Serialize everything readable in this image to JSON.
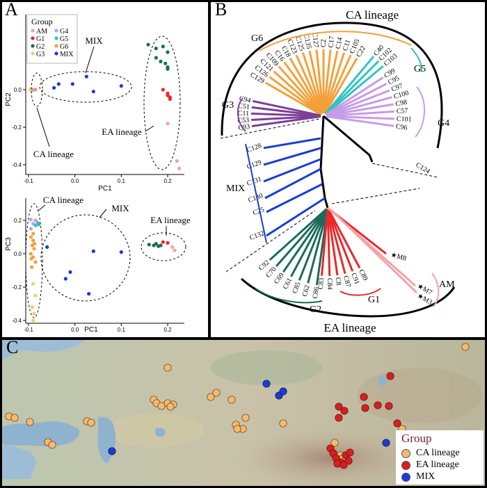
{
  "panel_labels": {
    "a": "A",
    "b": "B",
    "c": "C"
  },
  "colors": {
    "AM": "#f4a3a3",
    "G1": "#e8282a",
    "G2": "#1a6b5a",
    "G3": "#f2cc6b",
    "G4": "#c69be8",
    "G5": "#2ec4c4",
    "G6": "#f4a03a",
    "MIX": "#1a3cd6",
    "CA": "#f7b96a",
    "EA": "#d81f1f"
  },
  "legendA": {
    "title": "Group",
    "items": [
      "AM",
      "G4",
      "G1",
      "G5",
      "G2",
      "G6",
      "G3",
      "MIX"
    ]
  },
  "plot1": {
    "xlabel": "PC1",
    "ylabel": "PC2",
    "xticks": [
      "-0.1",
      "0.0",
      "0.1",
      "0.2"
    ],
    "yticks": [
      "0.0",
      "-0.2",
      "-0.4"
    ],
    "annotations": {
      "mix": "MIX",
      "ea": "EA lineage",
      "ca": "CA lineage"
    }
  },
  "plot2": {
    "xlabel": "PC1",
    "ylabel": "PC3",
    "xticks": [
      "-0.1",
      "0.0",
      "0.1",
      "0.2"
    ],
    "yticks": [
      "0.2",
      "0.0",
      "-0.2",
      "-0.4"
    ],
    "annotations": {
      "ca": "CA lineage",
      "mix": "MIX",
      "ea": "EA lineage"
    }
  },
  "tree": {
    "ca_label": "CA lineage",
    "ea_label": "EA lineage",
    "mix_label": "MIX",
    "groups": {
      "G6": "G6",
      "G5": "G5",
      "G4": "G4",
      "G3": "G3",
      "G2": "G2",
      "G1": "G1",
      "AM": "AM"
    },
    "g6_tips": [
      "C129",
      "C126",
      "C121",
      "C109",
      "C16",
      "C18",
      "C123",
      "C125",
      "C135",
      "C127",
      "C2",
      "C17",
      "C14",
      "C11",
      "C105",
      "C22"
    ],
    "g5_tips": [
      "C40",
      "C102",
      "C103"
    ],
    "g4_tips": [
      "C99",
      "C95",
      "C97",
      "C100",
      "C98",
      "C57",
      "C101",
      "C96"
    ],
    "g3_tips": [
      "C94",
      "C51",
      "C11",
      "C53",
      "C93"
    ],
    "mix_tips": [
      "C128",
      "C129",
      "C131",
      "C130",
      "C25",
      "C132"
    ],
    "other_tip": "C124",
    "g2_tips": [
      "C92",
      "C70",
      "C69",
      "C61",
      "C85",
      "C62",
      "C86"
    ],
    "g1_tips": [
      "C83",
      "C84",
      "C8",
      "C87",
      "C91",
      "C89"
    ],
    "am_tips": [
      "M8",
      "M7",
      "M3"
    ]
  },
  "map": {
    "legend_title": "Group",
    "legend_items": [
      {
        "label": "CA lineage",
        "key": "CA"
      },
      {
        "label": "EA lineage",
        "key": "EA"
      },
      {
        "label": "MIX",
        "key": "MIX"
      }
    ]
  }
}
